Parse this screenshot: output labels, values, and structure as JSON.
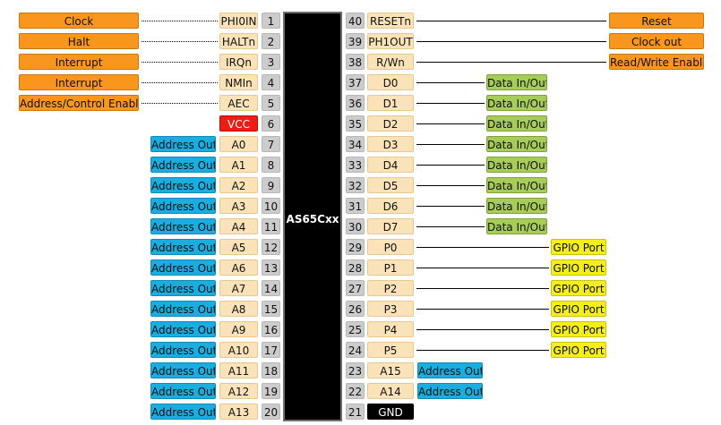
{
  "chip": {
    "name": "AS65Cxx"
  },
  "colors": {
    "orange": "#f8961e",
    "blue": "#1aaee0",
    "green": "#a7cc5a",
    "yellow": "#f4ef1a",
    "pin": "#fbe3b9",
    "vcc": "#ee1c12",
    "gnd": "#000000",
    "number": "#cccccc"
  },
  "left_pins": [
    {
      "num": "1",
      "name": "PHI0IN",
      "label": "Clock",
      "label_color": "orange",
      "line": "dotted"
    },
    {
      "num": "2",
      "name": "HALTn",
      "label": "Halt",
      "label_color": "orange",
      "line": "dotted"
    },
    {
      "num": "3",
      "name": "IRQn",
      "label": "Interrupt",
      "label_color": "orange",
      "line": "dotted"
    },
    {
      "num": "4",
      "name": "NMIn",
      "label": "Interrupt",
      "label_color": "orange",
      "line": "dotted"
    },
    {
      "num": "5",
      "name": "AEC",
      "label": "Address/Control Enable",
      "label_color": "orange",
      "line": "dotted"
    },
    {
      "num": "6",
      "name": "VCC",
      "pin_style": "vcc"
    },
    {
      "num": "7",
      "name": "A0",
      "label": "Address Out",
      "label_color": "blue"
    },
    {
      "num": "8",
      "name": "A1",
      "label": "Address Out",
      "label_color": "blue"
    },
    {
      "num": "9",
      "name": "A2",
      "label": "Address Out",
      "label_color": "blue"
    },
    {
      "num": "10",
      "name": "A3",
      "label": "Address Out",
      "label_color": "blue"
    },
    {
      "num": "11",
      "name": "A4",
      "label": "Address Out",
      "label_color": "blue"
    },
    {
      "num": "12",
      "name": "A5",
      "label": "Address Out",
      "label_color": "blue"
    },
    {
      "num": "13",
      "name": "A6",
      "label": "Address Out",
      "label_color": "blue"
    },
    {
      "num": "14",
      "name": "A7",
      "label": "Address Out",
      "label_color": "blue"
    },
    {
      "num": "15",
      "name": "A8",
      "label": "Address Out",
      "label_color": "blue"
    },
    {
      "num": "16",
      "name": "A9",
      "label": "Address Out",
      "label_color": "blue"
    },
    {
      "num": "17",
      "name": "A10",
      "label": "Address Out",
      "label_color": "blue"
    },
    {
      "num": "18",
      "name": "A11",
      "label": "Address Out",
      "label_color": "blue"
    },
    {
      "num": "19",
      "name": "A12",
      "label": "Address Out",
      "label_color": "blue"
    },
    {
      "num": "20",
      "name": "A13",
      "label": "Address Out",
      "label_color": "blue"
    }
  ],
  "right_pins": [
    {
      "num": "40",
      "name": "RESETn",
      "label": "Reset",
      "label_color": "orange",
      "line": "solid",
      "label_pos": "far"
    },
    {
      "num": "39",
      "name": "PH1OUT",
      "label": "Clock out",
      "label_color": "orange",
      "line": "solid",
      "label_pos": "far"
    },
    {
      "num": "38",
      "name": "R/Wn",
      "label": "Read/Write Enable",
      "label_color": "orange",
      "line": "solid",
      "label_pos": "far"
    },
    {
      "num": "37",
      "name": "D0",
      "label": "Data In/Out",
      "label_color": "green",
      "line": "solid",
      "label_pos": "mid"
    },
    {
      "num": "36",
      "name": "D1",
      "label": "Data In/Out",
      "label_color": "green",
      "line": "solid",
      "label_pos": "mid"
    },
    {
      "num": "35",
      "name": "D2",
      "label": "Data In/Out",
      "label_color": "green",
      "line": "solid",
      "label_pos": "mid"
    },
    {
      "num": "34",
      "name": "D3",
      "label": "Data In/Out",
      "label_color": "green",
      "line": "solid",
      "label_pos": "mid"
    },
    {
      "num": "33",
      "name": "D4",
      "label": "Data In/Out",
      "label_color": "green",
      "line": "solid",
      "label_pos": "mid"
    },
    {
      "num": "32",
      "name": "D5",
      "label": "Data In/Out",
      "label_color": "green",
      "line": "solid",
      "label_pos": "mid"
    },
    {
      "num": "31",
      "name": "D6",
      "label": "Data In/Out",
      "label_color": "green",
      "line": "solid",
      "label_pos": "mid"
    },
    {
      "num": "30",
      "name": "D7",
      "label": "Data In/Out",
      "label_color": "green",
      "line": "solid",
      "label_pos": "mid"
    },
    {
      "num": "29",
      "name": "P0",
      "label": "GPIO Port",
      "label_color": "yellow",
      "line": "solid",
      "label_pos": "gpio"
    },
    {
      "num": "28",
      "name": "P1",
      "label": "GPIO Port",
      "label_color": "yellow",
      "line": "solid",
      "label_pos": "gpio"
    },
    {
      "num": "27",
      "name": "P2",
      "label": "GPIO Port",
      "label_color": "yellow",
      "line": "solid",
      "label_pos": "gpio"
    },
    {
      "num": "26",
      "name": "P3",
      "label": "GPIO Port",
      "label_color": "yellow",
      "line": "solid",
      "label_pos": "gpio"
    },
    {
      "num": "25",
      "name": "P4",
      "label": "GPIO Port",
      "label_color": "yellow",
      "line": "solid",
      "label_pos": "gpio"
    },
    {
      "num": "24",
      "name": "P5",
      "label": "GPIO Port",
      "label_color": "yellow",
      "line": "solid",
      "label_pos": "gpio"
    },
    {
      "num": "23",
      "name": "A15",
      "label": "Address Out",
      "label_color": "blue",
      "label_pos": "near"
    },
    {
      "num": "22",
      "name": "A14",
      "label": "Address Out",
      "label_color": "blue",
      "label_pos": "near"
    },
    {
      "num": "21",
      "name": "GND",
      "pin_style": "gnd"
    }
  ]
}
